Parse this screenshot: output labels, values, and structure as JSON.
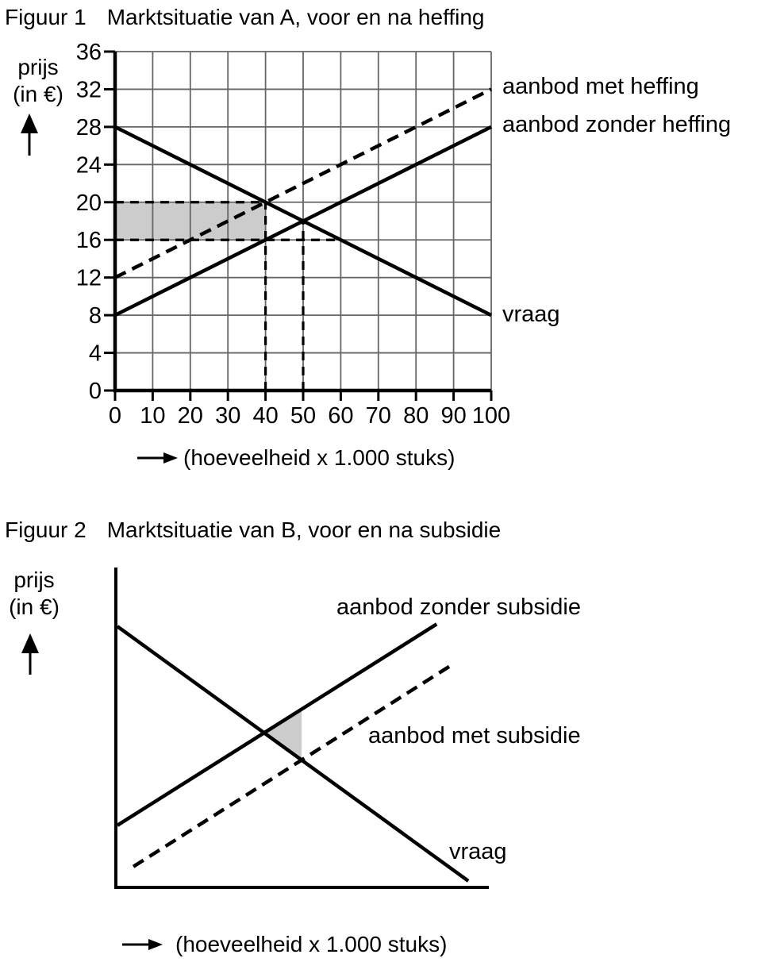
{
  "figure1": {
    "label": "Figuur 1",
    "title": "Marktsituatie van A, voor en na heffing",
    "ylabel_line1": "prijs",
    "ylabel_line2": "(in €)",
    "x_caption": "(hoeveelheid x 1.000 stuks)",
    "labels": {
      "supply_with_levy": "aanbod met heffing",
      "supply_without_levy": "aanbod zonder heffing",
      "demand": "vraag"
    }
  },
  "figure2": {
    "label": "Figuur 2",
    "title": "Marktsituatie van B, voor en na subsidie",
    "ylabel_line1": "prijs",
    "ylabel_line2": "(in €)",
    "x_caption": "(hoeveelheid x 1.000 stuks)",
    "labels": {
      "supply_without_subsidy": "aanbod zonder subsidie",
      "supply_with_subsidy": "aanbod met subsidie",
      "demand": "vraag"
    }
  },
  "chart_data": [
    {
      "figure": "Figuur 1",
      "type": "line",
      "title": "Marktsituatie van A, voor en na heffing",
      "xlabel": "(hoeveelheid x 1.000 stuks)",
      "ylabel": "prijs (in €)",
      "xlim": [
        0,
        100
      ],
      "ylim": [
        0,
        36
      ],
      "x_ticks": [
        0,
        10,
        20,
        30,
        40,
        50,
        60,
        70,
        80,
        90,
        100
      ],
      "y_ticks": [
        0,
        4,
        8,
        12,
        16,
        20,
        24,
        28,
        32,
        36
      ],
      "grid": true,
      "line_color": "#000000",
      "series": [
        {
          "name": "vraag",
          "style": "solid",
          "points": [
            [
              0,
              28
            ],
            [
              100,
              8
            ]
          ]
        },
        {
          "name": "aanbod zonder heffing",
          "style": "solid",
          "points": [
            [
              0,
              8
            ],
            [
              100,
              28
            ]
          ]
        },
        {
          "name": "aanbod met heffing",
          "style": "dashed",
          "points": [
            [
              0,
              12
            ],
            [
              100,
              32
            ]
          ]
        }
      ],
      "reference_lines": [
        {
          "type": "h",
          "y": 20,
          "x0": 0,
          "x1": 40
        },
        {
          "type": "h",
          "y": 16,
          "x0": 0,
          "x1": 60
        },
        {
          "type": "v",
          "x": 40,
          "y0": 0,
          "y1": 20
        },
        {
          "type": "v",
          "x": 50,
          "y0": 0,
          "y1": 18
        }
      ],
      "shaded_region": {
        "shape": "rect",
        "x0": 0,
        "x1": 40,
        "y0": 16,
        "y1": 20,
        "color": "#cccccc"
      },
      "equilibria": [
        {
          "label": "zonder heffing",
          "q": 50,
          "p": 18
        },
        {
          "label": "met heffing",
          "q": 40,
          "p": 20
        }
      ]
    },
    {
      "figure": "Figuur 2",
      "type": "line",
      "title": "Marktsituatie van B, voor en na subsidie",
      "xlabel": "(hoeveelheid x 1.000 stuks)",
      "ylabel": "prijs (in €)",
      "xlim": [
        0,
        100
      ],
      "ylim": [
        0,
        100
      ],
      "x_ticks": [],
      "y_ticks": [],
      "grid": false,
      "line_color": "#000000",
      "axes_tick_labels": "none",
      "series": [
        {
          "name": "vraag",
          "style": "solid",
          "points": [
            [
              0.4,
              81.6
            ],
            [
              94.5,
              2
            ]
          ]
        },
        {
          "name": "aanbod zonder subsidie",
          "style": "solid",
          "points": [
            [
              0.4,
              19.4
            ],
            [
              86,
              82.3
            ]
          ]
        },
        {
          "name": "aanbod met subsidie",
          "style": "dashed",
          "points": [
            [
              4.7,
              6.5
            ],
            [
              90,
              69.5
            ]
          ]
        }
      ],
      "reference_lines": [],
      "shaded_region": {
        "shape": "polygon",
        "points": [
          [
            39.8,
            48.3
          ],
          [
            49.8,
            55.6
          ],
          [
            49.8,
            39.8
          ]
        ],
        "color": "#cccccc"
      }
    }
  ]
}
